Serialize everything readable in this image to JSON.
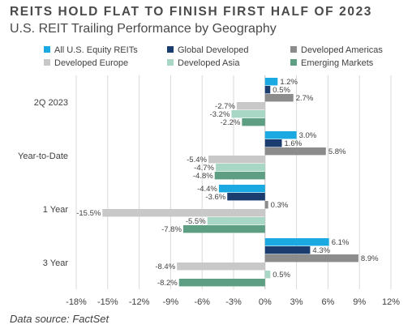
{
  "header": {
    "title": "REITS HOLD FLAT TO FINISH FIRST HALF OF 2023",
    "subtitle": "U.S. REIT Trailing Performance by Geography"
  },
  "footer": {
    "source": "Data source: FactSet"
  },
  "chart_data": {
    "type": "bar",
    "orientation": "horizontal",
    "categories": [
      "2Q 2023",
      "Year-to-Date",
      "1 Year",
      "3 Year"
    ],
    "series": [
      {
        "name": "All U.S. Equity REITs",
        "color": "#1aa9e0",
        "values": [
          1.2,
          3.0,
          -4.4,
          6.1
        ],
        "labels": [
          "1.2%",
          "3.0%",
          "-4.4%",
          "6.1%"
        ]
      },
      {
        "name": "Global Developed",
        "color": "#1a3c6e",
        "values": [
          0.5,
          1.6,
          -3.6,
          4.3
        ],
        "labels": [
          "0.5%",
          "1.6%",
          "-3.6%",
          "4.3%"
        ]
      },
      {
        "name": "Developed Americas",
        "color": "#8c8c8c",
        "values": [
          2.7,
          5.8,
          0.3,
          8.9
        ],
        "labels": [
          "2.7%",
          "5.8%",
          "0.3%",
          "8.9%"
        ]
      },
      {
        "name": "Developed Europe",
        "color": "#c8c8c8",
        "values": [
          -2.7,
          -5.4,
          -15.5,
          -8.4
        ],
        "labels": [
          "-2.7%",
          "-5.4%",
          "-15.5%",
          "-8.4%"
        ]
      },
      {
        "name": "Developed Asia",
        "color": "#a8d8c5",
        "values": [
          -3.2,
          -4.7,
          -5.5,
          0.5
        ],
        "labels": [
          "-3.2%",
          "-4.7%",
          "-5.5%",
          "0.5%"
        ]
      },
      {
        "name": "Emerging Markets",
        "color": "#5e9e83",
        "values": [
          -2.2,
          -4.8,
          -7.8,
          -8.2
        ],
        "labels": [
          "-2.2%",
          "-4.8%",
          "-7.8%",
          "-8.2%"
        ]
      }
    ],
    "x_ticks": [
      -18,
      -15,
      -12,
      -9,
      -6,
      -3,
      0,
      3,
      6,
      9,
      12
    ],
    "x_tick_labels": [
      "-18%",
      "-15%",
      "-12%",
      "-9%",
      "-6%",
      "-3%",
      "0%",
      "3%",
      "6%",
      "9%",
      "12%"
    ],
    "xlim": [
      -18,
      12
    ],
    "grid": "vertical",
    "legend_position": "top"
  }
}
